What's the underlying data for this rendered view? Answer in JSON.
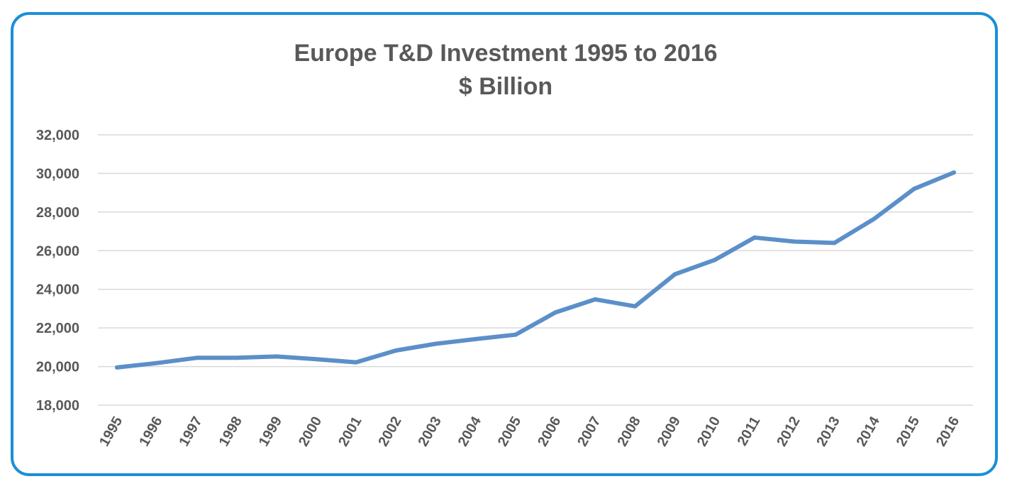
{
  "chart_data": {
    "type": "line",
    "title": "Europe T&D Investment 1995 to 2016",
    "subtitle": "$ Billion",
    "xlabel": "",
    "ylabel": "",
    "ylim": [
      18000,
      32000
    ],
    "yticks": [
      18000,
      20000,
      22000,
      24000,
      26000,
      28000,
      30000,
      32000
    ],
    "ytick_labels": [
      "18,000",
      "20,000",
      "22,000",
      "24,000",
      "26,000",
      "28,000",
      "30,000",
      "32,000"
    ],
    "grid": true,
    "legend": "none",
    "categories": [
      "1995",
      "1996",
      "1997",
      "1998",
      "1999",
      "2000",
      "2001",
      "2002",
      "2003",
      "2004",
      "2005",
      "2006",
      "2007",
      "2008",
      "2009",
      "2010",
      "2011",
      "2012",
      "2013",
      "2014",
      "2015",
      "2016"
    ],
    "series": [
      {
        "color": "#5b8fc9",
        "values": [
          19950,
          20180,
          20450,
          20450,
          20520,
          20380,
          20220,
          20830,
          21180,
          21420,
          21650,
          22800,
          23480,
          23120,
          24780,
          25520,
          26680,
          26470,
          26400,
          27650,
          29200,
          30050
        ]
      }
    ]
  },
  "colors": {
    "border": "#1a8fd8",
    "line": "#5b8fc9",
    "grid": "#d9d9d9",
    "text": "#595959"
  }
}
